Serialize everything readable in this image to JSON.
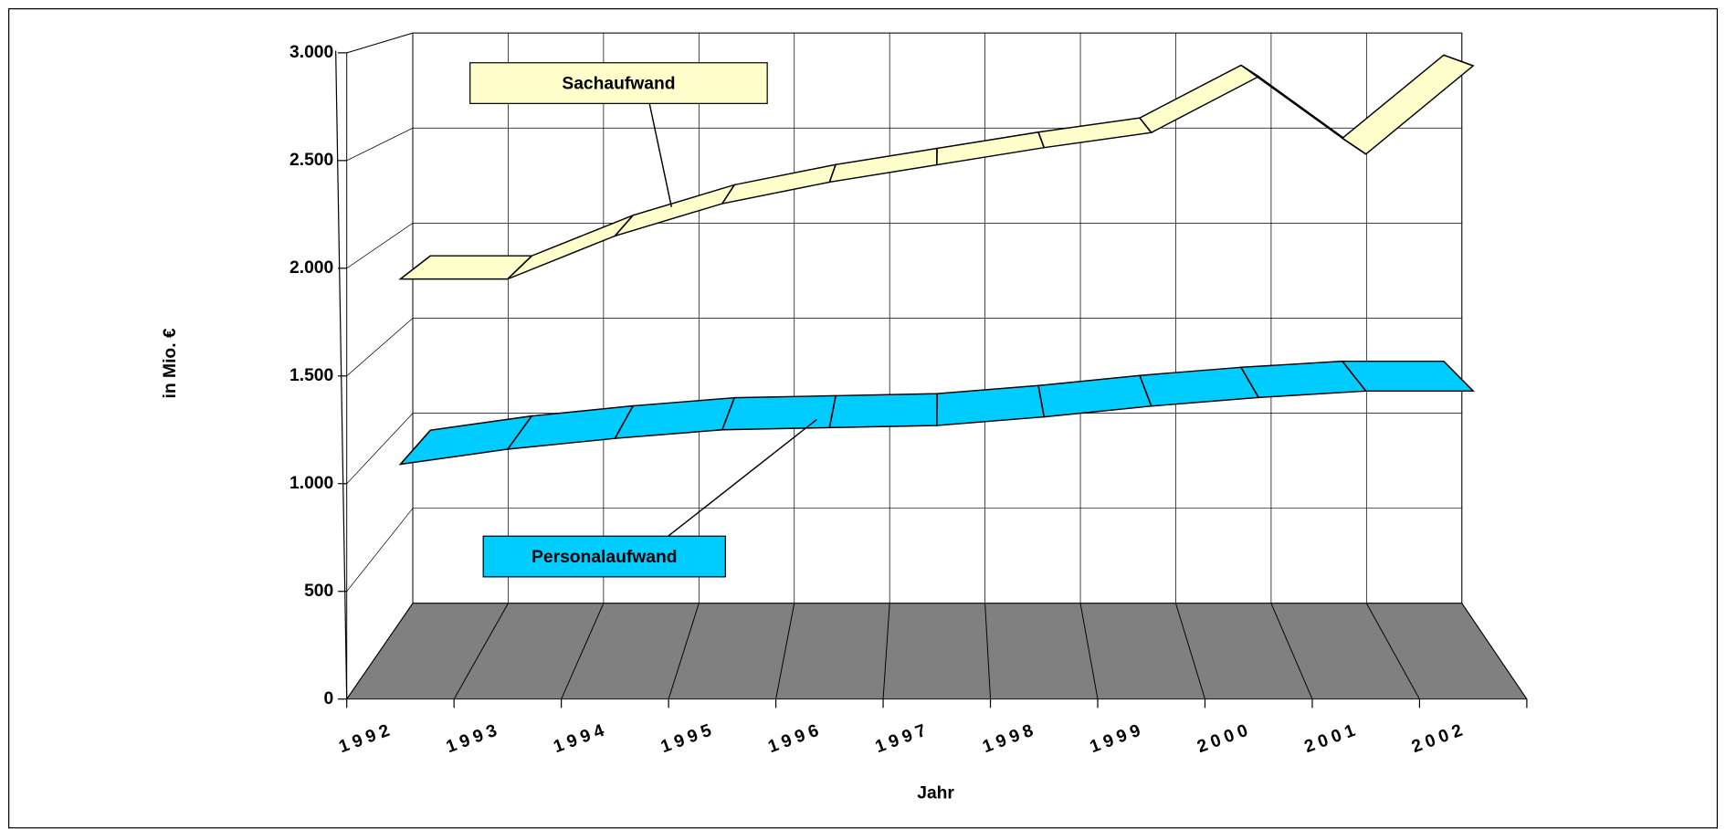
{
  "chart_data": {
    "type": "line3d",
    "x_label": "Jahr",
    "y_label": "in Mio. €",
    "categories": [
      "1992",
      "1993",
      "1994",
      "1995",
      "1996",
      "1997",
      "1998",
      "1999",
      "2000",
      "2001",
      "2002"
    ],
    "series": [
      {
        "name": "Sachaufwand",
        "color": "#ffffcc",
        "values": [
          1950,
          1950,
          2150,
          2300,
          2400,
          2480,
          2560,
          2630,
          2890,
          2530,
          2940
        ]
      },
      {
        "name": "Personalaufwand",
        "color": "#00ccff",
        "values": [
          1090,
          1160,
          1210,
          1250,
          1260,
          1270,
          1310,
          1360,
          1400,
          1430,
          1430
        ]
      }
    ],
    "ylim": [
      0,
      3000
    ],
    "yticks": [
      0,
      500,
      {
        "value": 1000,
        "label": "1.000"
      },
      {
        "value": 1500,
        "label": "1.500"
      },
      {
        "value": 2000,
        "label": "2.000"
      },
      {
        "value": 2500,
        "label": "2.500"
      },
      {
        "value": 3000,
        "label": "3.000"
      }
    ],
    "grid": true,
    "floor_color": "#808080"
  }
}
